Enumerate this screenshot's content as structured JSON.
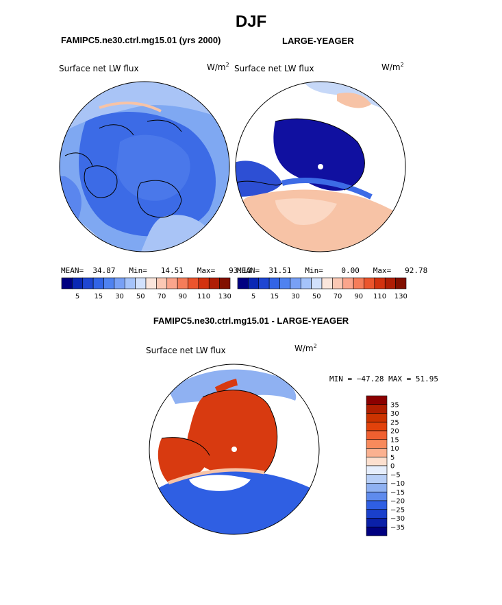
{
  "page": {
    "title": "DJF",
    "panel_left_title": "FAMIPC5.ne30.ctrl.mg15.01 (yrs 2000)",
    "panel_right_title": "LARGE-YEAGER",
    "panel_diff_title": "FAMIPC5.ne30.ctrl.mg15.01 - LARGE-YEAGER"
  },
  "panels": {
    "left": {
      "variable": "Surface net LW flux",
      "units_base": "W/m",
      "units_exp": "2",
      "stats": {
        "mean_label": "MEAN=",
        "mean": "34.87",
        "min_label": "Min=",
        "min": "14.51",
        "max_label": "Max=",
        "max": "93.13"
      }
    },
    "right": {
      "variable": "Surface net LW flux",
      "units_base": "W/m",
      "units_exp": "2",
      "stats": {
        "mean_label": "MEAN=",
        "mean": "31.51",
        "min_label": "Min=",
        "min": "0.00",
        "max_label": "Max=",
        "max": "92.78"
      }
    },
    "diff": {
      "variable": "Surface net LW flux",
      "units_base": "W/m",
      "units_exp": "2",
      "minmax": "MIN = −47.28 MAX =  51.95"
    }
  },
  "colorbar_top": {
    "ticks": [
      "5",
      "15",
      "30",
      "50",
      "70",
      "90",
      "110",
      "130"
    ],
    "colors": [
      "#000080",
      "#0a28b4",
      "#1e46d2",
      "#3264e6",
      "#4f82f0",
      "#78a0f5",
      "#a5c3fa",
      "#d2e1fc",
      "#fbe6dc",
      "#fbc8b4",
      "#faa58c",
      "#f57d5a",
      "#eb552d",
      "#d2320f",
      "#af1e05",
      "#821000"
    ]
  },
  "colorbar_diff": {
    "ticks": [
      "35",
      "30",
      "25",
      "20",
      "15",
      "10",
      "5",
      "0",
      "−5",
      "−10",
      "−15",
      "−20",
      "−25",
      "−30",
      "−35"
    ],
    "colors": [
      "#8b0000",
      "#b01e00",
      "#cc3300",
      "#e2420b",
      "#f06030",
      "#f88a5c",
      "#fbb190",
      "#fde0cf",
      "#e6eefc",
      "#b8cff7",
      "#8fb1f2",
      "#5f8bed",
      "#2f5fe3",
      "#1a40cc",
      "#0a20a8",
      "#000080"
    ]
  },
  "colors": {
    "ice_blue": "#1010a0",
    "mid_blue": "#3c6be6",
    "light_blue": "#7fa8f2",
    "pale_blue": "#c6d8f8",
    "warm_red": "#d83a10",
    "pale_salmon": "#f7c3a6"
  }
}
